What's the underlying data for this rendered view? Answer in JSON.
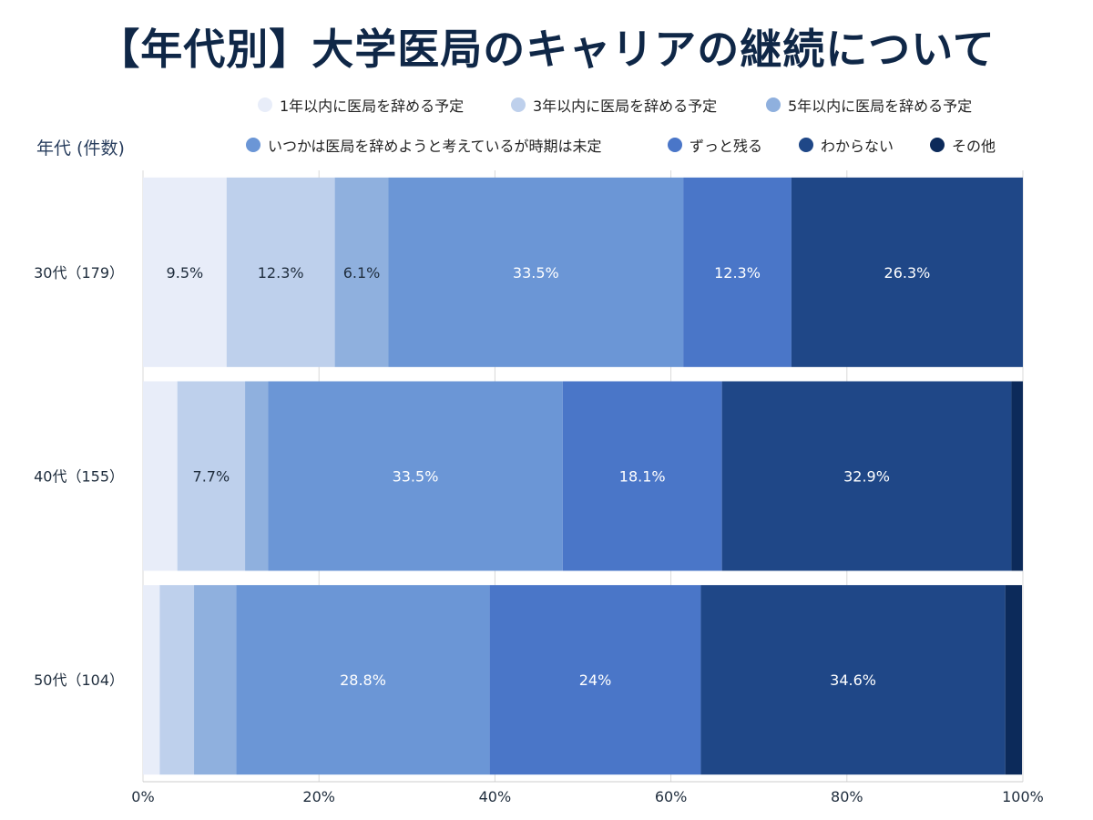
{
  "title": "【年代別】大学医局のキャリアの継続について",
  "y_axis_title": "年代 (件数)",
  "colors": [
    "#e8edf9",
    "#bed0ec",
    "#8fb0de",
    "#6b96d6",
    "#4a76c8",
    "#1f4787",
    "#0c2a5a"
  ],
  "label_colors": [
    "#1f2d3d",
    "#1f2d3d",
    "#1f2d3d",
    "#ffffff",
    "#ffffff",
    "#ffffff",
    "#ffffff"
  ],
  "chart_data": {
    "type": "bar",
    "orientation": "horizontal",
    "stacked": true,
    "categories": [
      "30代（179）",
      "40代（155）",
      "50代（104）"
    ],
    "series": [
      {
        "name": "1年以内に医局を辞める予定",
        "values": [
          9.5,
          3.9,
          1.9
        ],
        "labels": [
          "9.5%",
          "",
          ""
        ]
      },
      {
        "name": "3年以内に医局を辞める予定",
        "values": [
          12.3,
          7.7,
          3.9
        ],
        "labels": [
          "12.3%",
          "7.7%",
          ""
        ]
      },
      {
        "name": "5年以内に医局を辞める予定",
        "values": [
          6.1,
          2.6,
          4.8
        ],
        "labels": [
          "6.1%",
          "",
          ""
        ]
      },
      {
        "name": "いつかは医局を辞めようと考えているが時期は未定",
        "values": [
          33.5,
          33.5,
          28.8
        ],
        "labels": [
          "33.5%",
          "33.5%",
          "28.8%"
        ]
      },
      {
        "name": "ずっと残る",
        "values": [
          12.3,
          18.1,
          24.0
        ],
        "labels": [
          "12.3%",
          "18.1%",
          "24%"
        ]
      },
      {
        "name": "わからない",
        "values": [
          26.3,
          32.9,
          34.6
        ],
        "labels": [
          "26.3%",
          "32.9%",
          "34.6%"
        ]
      },
      {
        "name": "その他",
        "values": [
          0,
          1.3,
          1.9
        ],
        "labels": [
          "",
          "",
          ""
        ]
      }
    ],
    "xlim": [
      0,
      100
    ],
    "x_ticks": [
      0,
      20,
      40,
      60,
      80,
      100
    ],
    "x_tick_labels": [
      "0%",
      "20%",
      "40%",
      "60%",
      "80%",
      "100%"
    ],
    "grid": true,
    "legend_position": "top"
  }
}
